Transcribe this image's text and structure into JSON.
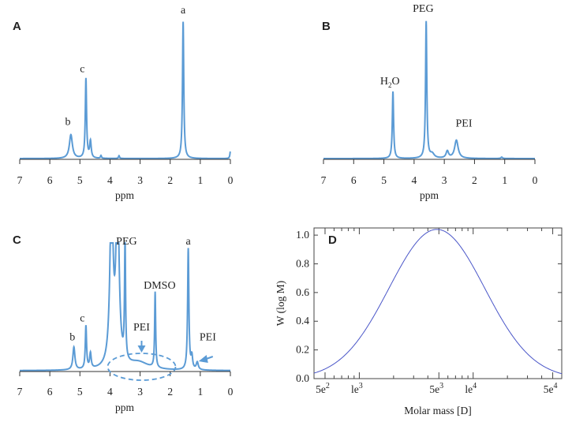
{
  "chart_data": [
    {
      "panel": "A",
      "type": "line",
      "xlabel": "ppm",
      "xlim": [
        7,
        0
      ],
      "x_ticks": [
        "7",
        "6",
        "5",
        "4",
        "3",
        "2",
        "1",
        "0"
      ],
      "color": "#5b9bd5",
      "peaks": [
        {
          "x": 5.3,
          "h": 0.17,
          "w": 0.06,
          "label": "b"
        },
        {
          "x": 4.8,
          "h": 0.57,
          "w": 0.025,
          "label": "c"
        },
        {
          "x": 4.65,
          "h": 0.12,
          "w": 0.03
        },
        {
          "x": 4.3,
          "h": 0.02,
          "w": 0.02
        },
        {
          "x": 3.7,
          "h": 0.02,
          "w": 0.02
        },
        {
          "x": 1.57,
          "h": 0.98,
          "w": 0.025,
          "label": "a"
        },
        {
          "x": 0.0,
          "h": 0.05,
          "w": 0.02
        }
      ],
      "annotations": [
        {
          "text": "b",
          "x": 5.4,
          "y": 0.24
        },
        {
          "text": "c",
          "x": 4.92,
          "y": 0.62
        },
        {
          "text": "a",
          "x": 1.57,
          "y": 1.04
        }
      ]
    },
    {
      "panel": "B",
      "type": "line",
      "xlabel": "ppm",
      "xlim": [
        7,
        0
      ],
      "x_ticks": [
        "7",
        "6",
        "5",
        "4",
        "3",
        "2",
        "1",
        "0"
      ],
      "color": "#5b9bd5",
      "peaks": [
        {
          "x": 4.7,
          "h": 0.48,
          "w": 0.025,
          "label": "H2O"
        },
        {
          "x": 3.6,
          "h": 0.98,
          "w": 0.025,
          "label": "PEG"
        },
        {
          "x": 3.4,
          "h": 0.03,
          "w": 0.08
        },
        {
          "x": 2.9,
          "h": 0.05,
          "w": 0.05
        },
        {
          "x": 2.6,
          "h": 0.13,
          "w": 0.07,
          "label": "PEI"
        },
        {
          "x": 1.1,
          "h": 0.01,
          "w": 0.03
        }
      ],
      "annotations": [
        {
          "text": "H2O",
          "x": 4.8,
          "y": 0.53
        },
        {
          "text": "PEG",
          "x": 3.7,
          "y": 1.05
        },
        {
          "text": "PEI",
          "x": 2.35,
          "y": 0.23
        }
      ]
    },
    {
      "panel": "C",
      "type": "line",
      "xlabel": "ppm",
      "xlim": [
        7,
        0
      ],
      "x_ticks": [
        "7",
        "6",
        "5",
        "4",
        "3",
        "2",
        "1",
        "0"
      ],
      "color": "#5b9bd5",
      "peaks": [
        {
          "x": 5.2,
          "h": 0.18,
          "w": 0.04,
          "label": "b"
        },
        {
          "x": 4.8,
          "h": 0.34,
          "w": 0.025,
          "label": "c"
        },
        {
          "x": 4.65,
          "h": 0.12,
          "w": 0.03
        },
        {
          "x": 3.95,
          "h": 1.4,
          "w": 0.06
        },
        {
          "x": 3.75,
          "h": 1.4,
          "w": 0.06,
          "label": "PEG"
        },
        {
          "x": 3.5,
          "h": 0.96,
          "w": 0.02
        },
        {
          "x": 3.05,
          "h": 0.06,
          "w": 0.4,
          "label": "PEI"
        },
        {
          "x": 2.5,
          "h": 0.6,
          "w": 0.02,
          "label": "DMSO"
        },
        {
          "x": 1.4,
          "h": 0.96,
          "w": 0.025,
          "label": "a"
        },
        {
          "x": 1.28,
          "h": 0.1,
          "w": 0.03
        },
        {
          "x": 1.1,
          "h": 0.06,
          "w": 0.04,
          "label": "PEI"
        }
      ],
      "annotations": [
        {
          "text": "b",
          "x": 5.25,
          "y": 0.24
        },
        {
          "text": "c",
          "x": 4.92,
          "y": 0.39
        },
        {
          "text": "PEG",
          "x": 3.45,
          "y": 1.0
        },
        {
          "text": "DMSO",
          "x": 2.35,
          "y": 0.65
        },
        {
          "text": "PEI",
          "x": 2.95,
          "y": 0.32
        },
        {
          "text": "a",
          "x": 1.4,
          "y": 1.0
        },
        {
          "text": "PEI",
          "x": 0.75,
          "y": 0.24
        }
      ]
    },
    {
      "panel": "D",
      "type": "line",
      "xlabel": "Molar mass [D]",
      "ylabel": "W (log M)",
      "x_scale": "log",
      "xlim": [
        400,
        60000
      ],
      "ylim": [
        0,
        1.05
      ],
      "y_ticks": [
        "0.0",
        "0.2",
        "0.4",
        "0.6",
        "0.8",
        "1.0"
      ],
      "x_tick_labels": [
        {
          "base": "5e",
          "exp": "2",
          "value": 500
        },
        {
          "base": "le",
          "exp": "3",
          "value": 1000
        },
        {
          "base": "5e",
          "exp": "3",
          "value": 5000
        },
        {
          "base": "le",
          "exp": "4",
          "value": 10000
        },
        {
          "base": "5e",
          "exp": "4",
          "value": 50000
        }
      ],
      "color": "#4a56c8",
      "curve": {
        "center_M": 4800,
        "sigma_log10": 0.42,
        "peak": 1.04
      }
    }
  ]
}
